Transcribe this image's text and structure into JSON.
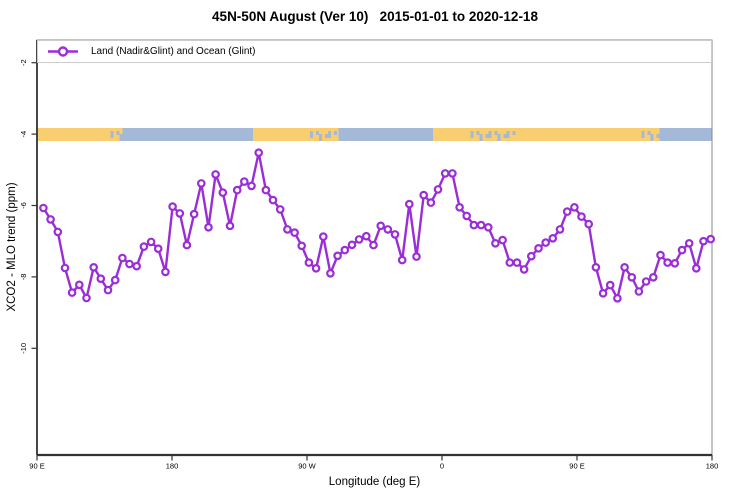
{
  "title": "45N-50N August (Ver 10)   2015-01-01 to 2020-12-18",
  "legend": {
    "label": "Land (Nadir&Glint) and Ocean (Glint)"
  },
  "axes": {
    "x_title": "Longitude (deg E)",
    "y_title": "XCO2 - MLO trend (ppm)",
    "x_ticks": [
      {
        "label": "90 E",
        "lon": 90
      },
      {
        "label": "180",
        "lon": 180
      },
      {
        "label": "90 W",
        "lon": 270
      },
      {
        "label": "0",
        "lon": 360
      },
      {
        "label": "90 E",
        "lon": 450
      },
      {
        "label": "180",
        "lon": 540
      }
    ],
    "y_ticks": [
      {
        "label": "-2",
        "value": -2
      },
      {
        "label": "-4",
        "value": -4
      },
      {
        "label": "-6",
        "value": -6
      },
      {
        "label": "-8",
        "value": -8
      },
      {
        "label": "-10",
        "value": -10
      }
    ],
    "x_range_lon": [
      90,
      540
    ],
    "y_range_ppm": [
      -13,
      -1.4
    ]
  },
  "colors": {
    "line": "#9B2DD7",
    "marker_fill": "#FFFFFF",
    "land": "#F8CE70",
    "ocean": "#A4B9D8",
    "axis": "#333333",
    "box": "#888888",
    "legend_border": "#CCCCCC"
  },
  "land_ocean_strip": {
    "center_value_ppm": -4,
    "segments": [
      {
        "from_lon": 90,
        "to_lon": 139,
        "type": "land"
      },
      {
        "from_lon": 139,
        "to_lon": 147,
        "type": "mixed"
      },
      {
        "from_lon": 147,
        "to_lon": 234,
        "type": "ocean"
      },
      {
        "from_lon": 234,
        "to_lon": 272,
        "type": "land"
      },
      {
        "from_lon": 272,
        "to_lon": 291,
        "type": "mixed"
      },
      {
        "from_lon": 291,
        "to_lon": 354,
        "type": "ocean"
      },
      {
        "from_lon": 354,
        "to_lon": 379,
        "type": "land"
      },
      {
        "from_lon": 379,
        "to_lon": 409,
        "type": "mixed"
      },
      {
        "from_lon": 409,
        "to_lon": 493,
        "type": "land"
      },
      {
        "from_lon": 493,
        "to_lon": 505,
        "type": "mixed"
      },
      {
        "from_lon": 505,
        "to_lon": 540,
        "type": "ocean"
      }
    ]
  },
  "chart_data": {
    "type": "line",
    "title": "45N-50N August (Ver 10)   2015-01-01 to 2020-12-18",
    "xlabel": "Longitude (deg E)",
    "ylabel": "XCO2 - MLO trend (ppm)",
    "legend_position": "top, full-width box inside plot",
    "grid": false,
    "x_axis_wrap_note": "x axis spans 450 deg of longitude: 90E -> 180 -> 90W -> 0 -> 90E -> 180",
    "xlim_lon": [
      90,
      540
    ],
    "ylim": [
      -13,
      -1.4
    ],
    "series": [
      {
        "name": "Land (Nadir&Glint) and Ocean (Glint)",
        "marker": "open-circle",
        "lon_start_deg": 94.3,
        "lon_step_deg": 4.783,
        "values": [
          -6.07,
          -6.39,
          -6.74,
          -7.75,
          -8.44,
          -8.22,
          -8.59,
          -7.73,
          -8.05,
          -8.37,
          -8.09,
          -7.47,
          -7.64,
          -7.7,
          -7.15,
          -7.02,
          -7.21,
          -7.86,
          -6.03,
          -6.22,
          -7.11,
          -6.24,
          -5.38,
          -6.61,
          -5.13,
          -5.64,
          -6.57,
          -5.57,
          -5.33,
          -5.45,
          -4.52,
          -5.57,
          -5.85,
          -6.11,
          -6.67,
          -6.76,
          -7.13,
          -7.6,
          -7.76,
          -6.87,
          -7.9,
          -7.41,
          -7.25,
          -7.1,
          -6.95,
          -6.86,
          -7.11,
          -6.57,
          -6.67,
          -6.81,
          -7.53,
          -5.96,
          -7.43,
          -5.71,
          -5.92,
          -5.55,
          -5.1,
          -5.1,
          -6.05,
          -6.29,
          -6.55,
          -6.55,
          -6.61,
          -7.06,
          -6.97,
          -7.6,
          -7.6,
          -7.79,
          -7.42,
          -7.2,
          -7.04,
          -6.92,
          -6.67,
          -6.17,
          -6.05,
          -6.31,
          -6.52,
          -7.73,
          -8.46,
          -8.23,
          -8.6,
          -7.73,
          -8.01,
          -8.41,
          -8.13,
          -8.01,
          -7.39,
          -7.6,
          -7.62,
          -7.25,
          -7.06,
          -7.76,
          -7.0,
          -6.94
        ]
      }
    ]
  }
}
